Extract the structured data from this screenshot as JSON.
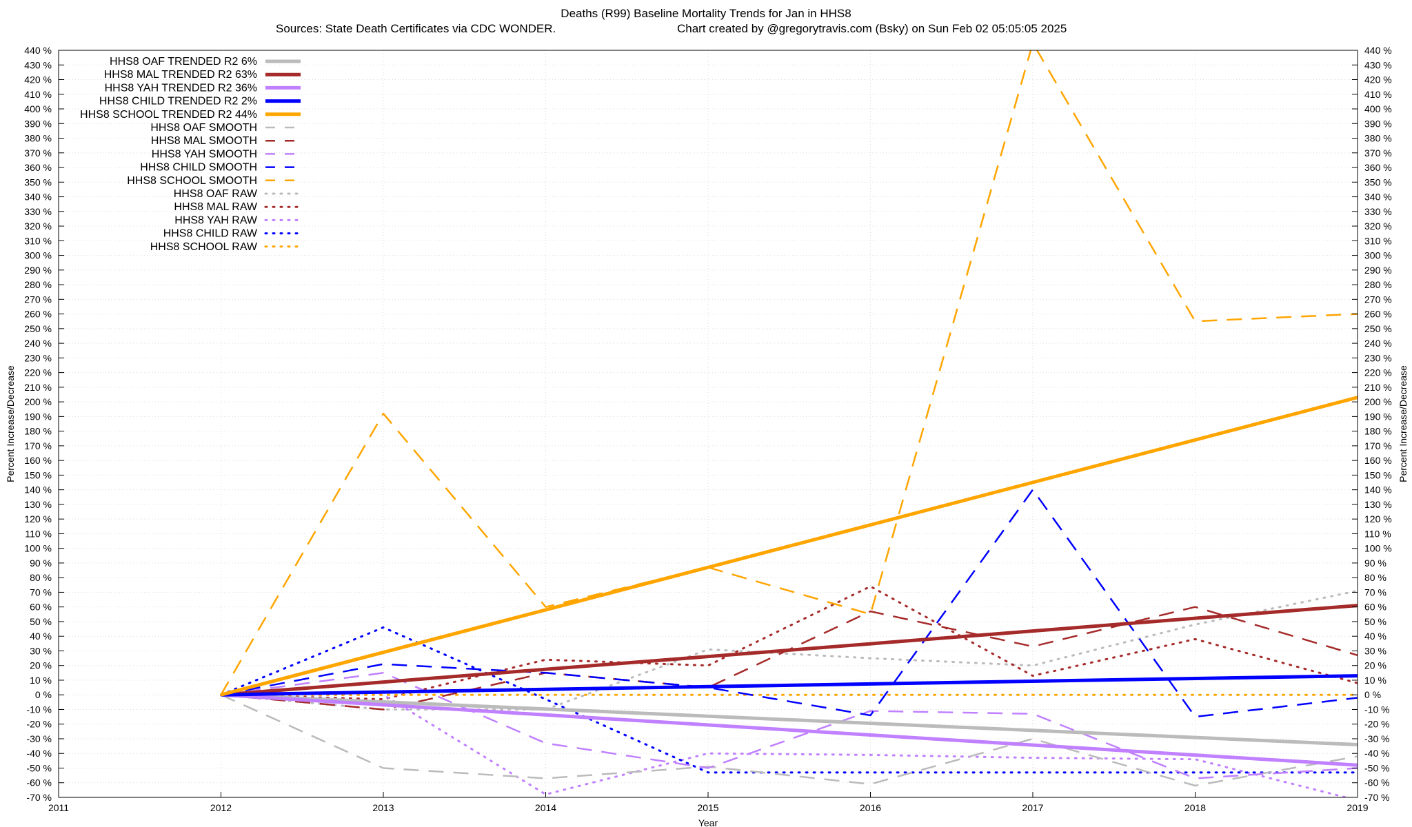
{
  "chart_data": {
    "type": "line",
    "title_line1": "Deaths (R99)  Baseline Mortality Trends for Jan in HHS8",
    "title_line2_left": "Sources: State Death Certificates via CDC WONDER.",
    "title_line2_right": "Chart created by @gregorytravis.com (Bsky) on Sun Feb 02 05:05:05 2025",
    "xlabel": "Year",
    "ylabel": "Percent Increase/Decrease",
    "ylabel_right": "Percent Increase/Decrease",
    "xlim": [
      2011,
      2019
    ],
    "ylim": [
      -70,
      440
    ],
    "x_ticks": [
      2011,
      2012,
      2013,
      2014,
      2015,
      2016,
      2017,
      2018,
      2019
    ],
    "y_tick_step": 10,
    "y_tick_suffix": " %",
    "grid": true,
    "legend_position": "top-left",
    "series": [
      {
        "name": "HHS8 OAF TRENDED R2  6%",
        "style": "solid",
        "color": "#bbbbbb",
        "width": 5,
        "x": [
          2012,
          2019
        ],
        "y": [
          0,
          -34
        ]
      },
      {
        "name": "HHS8 MAL TRENDED R2  63%",
        "style": "solid",
        "color": "#a52a2a",
        "width": 5,
        "x": [
          2012,
          2019
        ],
        "y": [
          0,
          61
        ]
      },
      {
        "name": "HHS8 YAH TRENDED R2  36%",
        "style": "solid",
        "color": "#c080ff",
        "width": 5,
        "x": [
          2012,
          2019
        ],
        "y": [
          0,
          -48
        ]
      },
      {
        "name": "HHS8 CHILD TRENDED R2  2%",
        "style": "solid",
        "color": "#0000ff",
        "width": 5,
        "x": [
          2012,
          2019
        ],
        "y": [
          0,
          13
        ]
      },
      {
        "name": "HHS8 SCHOOL TRENDED R2  44%",
        "style": "solid",
        "color": "#ffa500",
        "width": 5,
        "x": [
          2012,
          2019
        ],
        "y": [
          0,
          203
        ]
      },
      {
        "name": "HHS8 OAF SMOOTH",
        "style": "dashed",
        "color": "#bbbbbb",
        "width": 2.5,
        "x": [
          2012,
          2013,
          2014,
          2015,
          2016,
          2017,
          2018,
          2019
        ],
        "y": [
          0,
          -50,
          -57,
          -49,
          -61,
          -30,
          -62,
          -42
        ]
      },
      {
        "name": "HHS8 MAL SMOOTH",
        "style": "dashed",
        "color": "#a52a2a",
        "width": 2.5,
        "x": [
          2012,
          2013,
          2014,
          2015,
          2016,
          2017,
          2018,
          2019
        ],
        "y": [
          0,
          -10,
          15,
          5,
          57,
          33,
          60,
          27
        ]
      },
      {
        "name": "HHS8 YAH SMOOTH",
        "style": "dashed",
        "color": "#c080ff",
        "width": 2.5,
        "x": [
          2012,
          2013,
          2014,
          2015,
          2016,
          2017,
          2018,
          2019
        ],
        "y": [
          0,
          15,
          -33,
          -50,
          -11,
          -13,
          -57,
          -50
        ]
      },
      {
        "name": "HHS8 CHILD SMOOTH",
        "style": "dashed",
        "color": "#0000ff",
        "width": 2.5,
        "x": [
          2012,
          2013,
          2014,
          2015,
          2016,
          2017,
          2018,
          2019
        ],
        "y": [
          0,
          21,
          15,
          5,
          -14,
          140,
          -15,
          -2
        ]
      },
      {
        "name": "HHS8 SCHOOL SMOOTH",
        "style": "dashed",
        "color": "#ffa500",
        "width": 2.5,
        "x": [
          2012,
          2013,
          2014,
          2015,
          2016,
          2017,
          2018,
          2019
        ],
        "y": [
          0,
          192,
          60,
          87,
          55,
          445,
          255,
          260
        ]
      },
      {
        "name": "HHS8 OAF RAW",
        "style": "dotted",
        "color": "#bbbbbb",
        "width": 3,
        "x": [
          2012,
          2013,
          2014,
          2015,
          2016,
          2017,
          2018,
          2019
        ],
        "y": [
          0,
          -10,
          -10,
          31,
          25,
          20,
          48,
          71
        ]
      },
      {
        "name": "HHS8 MAL RAW",
        "style": "dotted",
        "color": "#a52a2a",
        "width": 3,
        "x": [
          2012,
          2013,
          2014,
          2015,
          2016,
          2017,
          2018,
          2019
        ],
        "y": [
          0,
          -3,
          24,
          20,
          74,
          13,
          38,
          8
        ]
      },
      {
        "name": "HHS8 YAH RAW",
        "style": "dotted",
        "color": "#c080ff",
        "width": 3,
        "x": [
          2012,
          2013,
          2014,
          2015,
          2016,
          2017,
          2018,
          2019
        ],
        "y": [
          0,
          0,
          -68,
          -40,
          -41,
          -43,
          -44,
          -72
        ]
      },
      {
        "name": "HHS8 CHILD RAW",
        "style": "dotted",
        "color": "#0000ff",
        "width": 3,
        "x": [
          2012,
          2013,
          2014,
          2015,
          2016,
          2017,
          2018,
          2019
        ],
        "y": [
          0,
          46,
          -3,
          -53,
          -53,
          -53,
          -53,
          -53
        ]
      },
      {
        "name": "HHS8 SCHOOL RAW",
        "style": "dotted",
        "color": "#ffa500",
        "width": 3,
        "x": [
          2012,
          2013,
          2014,
          2015,
          2016,
          2017,
          2018,
          2019
        ],
        "y": [
          0,
          0,
          0,
          0,
          0,
          0,
          0,
          0
        ]
      }
    ]
  }
}
